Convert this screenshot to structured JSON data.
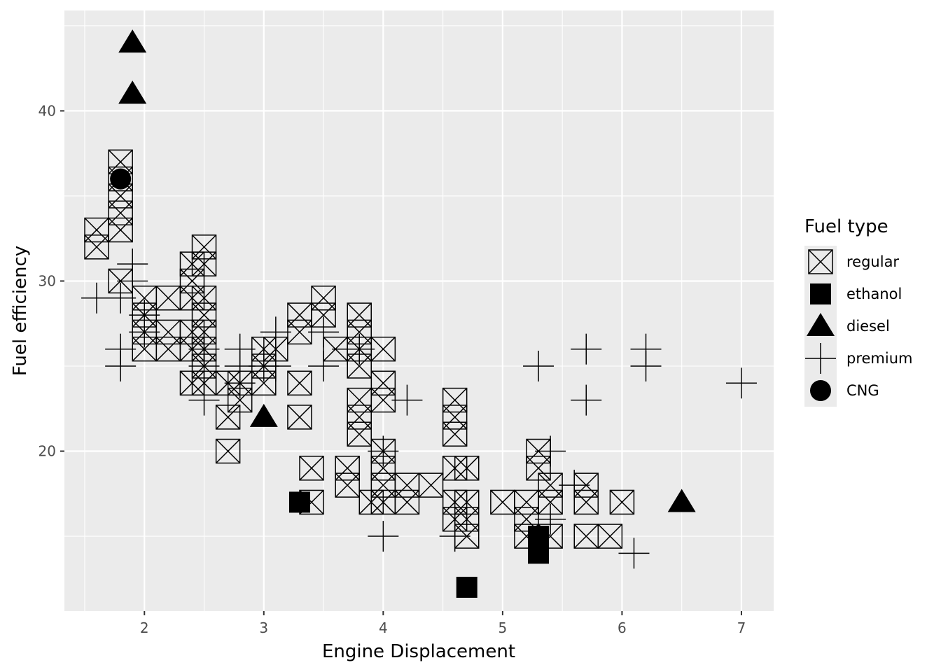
{
  "chart_data": {
    "type": "scatter",
    "title": "",
    "xlabel": "Engine Displacement",
    "ylabel": "Fuel efficiency",
    "xlim": [
      1.33,
      7.27
    ],
    "ylim": [
      10.6,
      45.9
    ],
    "x_ticks": [
      2,
      3,
      4,
      5,
      6,
      7
    ],
    "y_ticks": [
      20,
      30,
      40
    ],
    "grid": true,
    "legend": {
      "title": "Fuel type",
      "position": "right",
      "entries": [
        {
          "label": "regular",
          "shape": "square-x"
        },
        {
          "label": "ethanol",
          "shape": "filled-square"
        },
        {
          "label": "diesel",
          "shape": "filled-triangle"
        },
        {
          "label": "premium",
          "shape": "plus"
        },
        {
          "label": "CNG",
          "shape": "filled-circle"
        }
      ]
    },
    "series": [
      {
        "name": "regular",
        "points": [
          [
            1.6,
            33
          ],
          [
            1.6,
            32
          ],
          [
            1.8,
            37
          ],
          [
            1.8,
            36
          ],
          [
            1.8,
            35
          ],
          [
            1.8,
            34
          ],
          [
            1.8,
            33
          ],
          [
            1.8,
            30
          ],
          [
            2,
            29
          ],
          [
            2,
            28
          ],
          [
            2,
            27
          ],
          [
            2,
            26
          ],
          [
            2.2,
            29
          ],
          [
            2.2,
            27
          ],
          [
            2.2,
            26
          ],
          [
            2.4,
            31
          ],
          [
            2.4,
            30
          ],
          [
            2.4,
            29
          ],
          [
            2.4,
            27
          ],
          [
            2.4,
            26
          ],
          [
            2.4,
            24
          ],
          [
            2.5,
            32
          ],
          [
            2.5,
            31
          ],
          [
            2.5,
            29
          ],
          [
            2.5,
            28
          ],
          [
            2.5,
            27
          ],
          [
            2.5,
            26
          ],
          [
            2.5,
            25
          ],
          [
            2.5,
            24
          ],
          [
            2.7,
            24
          ],
          [
            2.7,
            22
          ],
          [
            2.7,
            20
          ],
          [
            2.8,
            24
          ],
          [
            2.8,
            23
          ],
          [
            3,
            26
          ],
          [
            3,
            25
          ],
          [
            3,
            24
          ],
          [
            3.1,
            26
          ],
          [
            3.3,
            28
          ],
          [
            3.3,
            27
          ],
          [
            3.3,
            24
          ],
          [
            3.3,
            22
          ],
          [
            3.4,
            19
          ],
          [
            3.4,
            17
          ],
          [
            3.5,
            29
          ],
          [
            3.5,
            28
          ],
          [
            3.6,
            26
          ],
          [
            3.7,
            19
          ],
          [
            3.7,
            18
          ],
          [
            3.8,
            28
          ],
          [
            3.8,
            27
          ],
          [
            3.8,
            26
          ],
          [
            3.8,
            25
          ],
          [
            3.8,
            23
          ],
          [
            3.8,
            22
          ],
          [
            3.8,
            21
          ],
          [
            3.9,
            17
          ],
          [
            4,
            26
          ],
          [
            4,
            24
          ],
          [
            4,
            23
          ],
          [
            4,
            20
          ],
          [
            4,
            19
          ],
          [
            4,
            18
          ],
          [
            4,
            17
          ],
          [
            4.2,
            18
          ],
          [
            4.2,
            17
          ],
          [
            4.4,
            18
          ],
          [
            4.6,
            23
          ],
          [
            4.6,
            22
          ],
          [
            4.6,
            21
          ],
          [
            4.6,
            19
          ],
          [
            4.6,
            17
          ],
          [
            4.6,
            16
          ],
          [
            4.7,
            19
          ],
          [
            4.7,
            17
          ],
          [
            4.7,
            16
          ],
          [
            4.7,
            15
          ],
          [
            5,
            17
          ],
          [
            5.2,
            17
          ],
          [
            5.2,
            16
          ],
          [
            5.2,
            15
          ],
          [
            5.3,
            20
          ],
          [
            5.3,
            19
          ],
          [
            5.4,
            18
          ],
          [
            5.4,
            17
          ],
          [
            5.4,
            15
          ],
          [
            5.7,
            18
          ],
          [
            5.7,
            17
          ],
          [
            5.7,
            15
          ],
          [
            5.9,
            15
          ],
          [
            6,
            17
          ]
        ]
      },
      {
        "name": "ethanol",
        "points": [
          [
            3.3,
            17
          ],
          [
            4.7,
            12
          ],
          [
            5.3,
            15
          ],
          [
            5.3,
            14
          ]
        ]
      },
      {
        "name": "diesel",
        "points": [
          [
            1.9,
            44
          ],
          [
            1.9,
            41
          ],
          [
            3,
            22
          ],
          [
            6.5,
            17
          ]
        ]
      },
      {
        "name": "premium",
        "points": [
          [
            1.6,
            29
          ],
          [
            1.8,
            29
          ],
          [
            1.8,
            26
          ],
          [
            1.8,
            25
          ],
          [
            1.9,
            31
          ],
          [
            1.9,
            30
          ],
          [
            2,
            28
          ],
          [
            2,
            27
          ],
          [
            2.5,
            26
          ],
          [
            2.5,
            25
          ],
          [
            2.5,
            23
          ],
          [
            2.8,
            26
          ],
          [
            2.8,
            25
          ],
          [
            2.8,
            24
          ],
          [
            3,
            25
          ],
          [
            3.1,
            27
          ],
          [
            3.1,
            25
          ],
          [
            3.5,
            27
          ],
          [
            3.5,
            25
          ],
          [
            3.7,
            26
          ],
          [
            3.8,
            26
          ],
          [
            4,
            20
          ],
          [
            4,
            15
          ],
          [
            4.2,
            23
          ],
          [
            4.6,
            15
          ],
          [
            5.3,
            25
          ],
          [
            5.4,
            20
          ],
          [
            5.4,
            16
          ],
          [
            5.6,
            18
          ],
          [
            5.7,
            26
          ],
          [
            5.7,
            23
          ],
          [
            6.1,
            14
          ],
          [
            6.2,
            26
          ],
          [
            6.2,
            25
          ],
          [
            7,
            24
          ]
        ]
      },
      {
        "name": "CNG",
        "points": [
          [
            1.8,
            36
          ]
        ]
      }
    ]
  }
}
